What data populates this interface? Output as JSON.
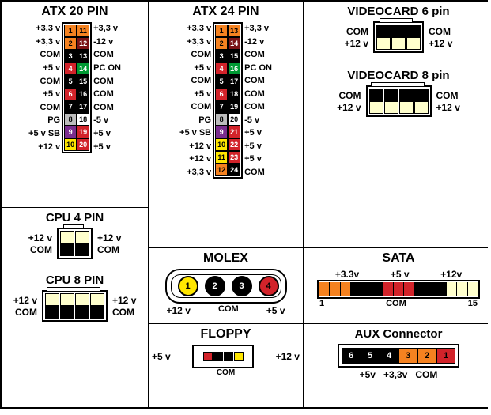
{
  "colors": {
    "orange": "#f58220",
    "red": "#d2232a",
    "black": "#000000",
    "maroon": "#7a1315",
    "green": "#009933",
    "gray": "#bdbdbd",
    "purple": "#7b2e8e",
    "yellow": "#ffe600",
    "white": "#ffffff",
    "lightyellow": "#ffffcc",
    "darkred": "#8b0000"
  },
  "atx20": {
    "title": "ATX 20 PIN",
    "title_fontsize": 16,
    "left_labels": [
      "+3,3 v",
      "+3,3 v",
      "COM",
      "+5 v",
      "COM",
      "+5 v",
      "COM",
      "PG",
      "+5 v SB",
      "+12 v"
    ],
    "right_labels": [
      "+3,3 v",
      "-12 v",
      "COM",
      "PC ON",
      "COM",
      "COM",
      "COM",
      "-5 v",
      "+5 v",
      "+5 v"
    ],
    "left_pins": [
      {
        "n": "1",
        "c": "orange"
      },
      {
        "n": "2",
        "c": "orange"
      },
      {
        "n": "3",
        "c": "black"
      },
      {
        "n": "4",
        "c": "red"
      },
      {
        "n": "5",
        "c": "black"
      },
      {
        "n": "6",
        "c": "red"
      },
      {
        "n": "7",
        "c": "black"
      },
      {
        "n": "8",
        "c": "gray"
      },
      {
        "n": "9",
        "c": "purple"
      },
      {
        "n": "10",
        "c": "yellow"
      }
    ],
    "right_pins": [
      {
        "n": "11",
        "c": "orange"
      },
      {
        "n": "12",
        "c": "maroon"
      },
      {
        "n": "13",
        "c": "black"
      },
      {
        "n": "14",
        "c": "green"
      },
      {
        "n": "15",
        "c": "black"
      },
      {
        "n": "16",
        "c": "black"
      },
      {
        "n": "17",
        "c": "black"
      },
      {
        "n": "18",
        "c": "white"
      },
      {
        "n": "19",
        "c": "red"
      },
      {
        "n": "20",
        "c": "red"
      }
    ]
  },
  "atx24": {
    "title": "ATX 24 PIN",
    "title_fontsize": 16,
    "left_labels": [
      "+3,3 v",
      "+3,3 v",
      "COM",
      "+5 v",
      "COM",
      "+5 v",
      "COM",
      "PG",
      "+5 v SB",
      "+12 v",
      "+12 v",
      "+3,3 v"
    ],
    "right_labels": [
      "+3,3 v",
      "-12 v",
      "COM",
      "PC ON",
      "COM",
      "COM",
      "COM",
      "-5 v",
      "+5 v",
      "+5 v",
      "+5 v",
      "COM"
    ],
    "left_pins": [
      {
        "n": "1",
        "c": "orange"
      },
      {
        "n": "2",
        "c": "orange"
      },
      {
        "n": "3",
        "c": "black"
      },
      {
        "n": "4",
        "c": "red"
      },
      {
        "n": "5",
        "c": "black"
      },
      {
        "n": "6",
        "c": "red"
      },
      {
        "n": "7",
        "c": "black"
      },
      {
        "n": "8",
        "c": "gray"
      },
      {
        "n": "9",
        "c": "purple"
      },
      {
        "n": "10",
        "c": "yellow"
      },
      {
        "n": "11",
        "c": "yellow"
      },
      {
        "n": "12",
        "c": "orange"
      }
    ],
    "right_pins": [
      {
        "n": "13",
        "c": "orange"
      },
      {
        "n": "14",
        "c": "maroon"
      },
      {
        "n": "15",
        "c": "black"
      },
      {
        "n": "16",
        "c": "green"
      },
      {
        "n": "17",
        "c": "black"
      },
      {
        "n": "18",
        "c": "black"
      },
      {
        "n": "19",
        "c": "black"
      },
      {
        "n": "20",
        "c": "white"
      },
      {
        "n": "21",
        "c": "red"
      },
      {
        "n": "22",
        "c": "red"
      },
      {
        "n": "23",
        "c": "red"
      },
      {
        "n": "24",
        "c": "black"
      }
    ]
  },
  "cpu4": {
    "title": "CPU 4 PIN",
    "title_fontsize": 15,
    "left_labels": [
      "+12 v",
      "COM"
    ],
    "right_labels": [
      "+12 v",
      "COM"
    ],
    "rows": [
      [
        "lightyellow",
        "lightyellow"
      ],
      [
        "black",
        "black"
      ]
    ]
  },
  "cpu8": {
    "title": "CPU 8 PIN",
    "title_fontsize": 15,
    "left_labels": [
      "+12 v",
      "COM"
    ],
    "right_labels": [
      "+12 v",
      "COM"
    ],
    "rows": [
      [
        "lightyellow",
        "lightyellow",
        "lightyellow",
        "lightyellow"
      ],
      [
        "black",
        "black",
        "black",
        "black"
      ]
    ]
  },
  "vc6": {
    "title": "VIDEOCARD 6 pin",
    "title_fontsize": 15,
    "left_labels": [
      "COM",
      "+12 v"
    ],
    "right_labels": [
      "COM",
      "+12 v"
    ],
    "rows": [
      [
        "black",
        "black",
        "black"
      ],
      [
        "lightyellow",
        "lightyellow",
        "lightyellow"
      ]
    ]
  },
  "vc8": {
    "title": "VIDEOCARD 8 pin",
    "title_fontsize": 15,
    "left_labels": [
      "COM",
      "+12 v"
    ],
    "right_labels": [
      "COM",
      "+12 v"
    ],
    "rows": [
      [
        "black",
        "black",
        "black",
        "black"
      ],
      [
        "lightyellow",
        "lightyellow",
        "lightyellow",
        "lightyellow"
      ]
    ]
  },
  "molex": {
    "title": "MOLEX",
    "title_fontsize": 16,
    "pins": [
      {
        "n": "1",
        "c": "yellow"
      },
      {
        "n": "2",
        "c": "black"
      },
      {
        "n": "3",
        "c": "black"
      },
      {
        "n": "4",
        "c": "red"
      }
    ],
    "left_label": "+12 v",
    "right_label": "+5 v",
    "bottom_label": "COM"
  },
  "floppy": {
    "title": "FLOPPY",
    "title_fontsize": 16,
    "pins": [
      "red",
      "black",
      "black",
      "yellow"
    ],
    "left_label": "+5 v",
    "right_label": "+12 v",
    "bottom_label": "COM"
  },
  "sata": {
    "title": "SATA",
    "title_fontsize": 16,
    "top_labels": [
      "+3.3v",
      "+5 v",
      "+12v"
    ],
    "segments": [
      "orange",
      "orange",
      "orange",
      "black",
      "black",
      "black",
      "red",
      "red",
      "red",
      "black",
      "black",
      "black",
      "lightyellow",
      "lightyellow",
      "lightyellow"
    ],
    "bl_label": "1",
    "br_label": "15",
    "bottom_label": "COM"
  },
  "aux": {
    "title": "AUX Connector",
    "title_fontsize": 15,
    "pins": [
      {
        "n": "6",
        "c": "black"
      },
      {
        "n": "5",
        "c": "black"
      },
      {
        "n": "4",
        "c": "black"
      },
      {
        "n": "3",
        "c": "orange"
      },
      {
        "n": "2",
        "c": "orange"
      },
      {
        "n": "1",
        "c": "red"
      }
    ],
    "bottom_labels": [
      "+5v",
      "+3,3v",
      "COM"
    ]
  }
}
